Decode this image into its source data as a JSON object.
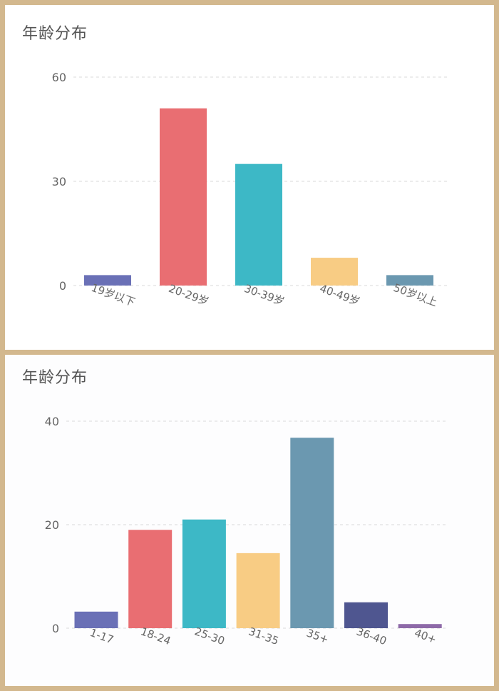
{
  "chart_data": [
    {
      "type": "bar",
      "title": "年龄分布",
      "categories": [
        "19岁以下",
        "20-29岁",
        "30-39岁",
        "40-49岁",
        "50岁以上"
      ],
      "values": [
        3,
        51,
        35,
        8,
        3
      ],
      "colors": [
        "#6a70b6",
        "#e96e72",
        "#3db8c6",
        "#f8cc84",
        "#6b98b0"
      ],
      "ylim": [
        0,
        60
      ],
      "yticks": [
        0,
        30,
        60
      ],
      "grid": true
    },
    {
      "type": "bar",
      "title": "年龄分布",
      "categories": [
        "1-17",
        "18-24",
        "25-30",
        "31-35",
        "35+",
        "36-40",
        "40+"
      ],
      "values": [
        3.2,
        19,
        21,
        14.5,
        36.8,
        5,
        0.8
      ],
      "colors": [
        "#6a70b6",
        "#e96e72",
        "#3db8c6",
        "#f8cc84",
        "#6b98b0",
        "#4f5690",
        "#8e6aa8"
      ],
      "ylim": [
        0,
        40
      ],
      "yticks": [
        0,
        20,
        40
      ],
      "grid": true
    }
  ]
}
